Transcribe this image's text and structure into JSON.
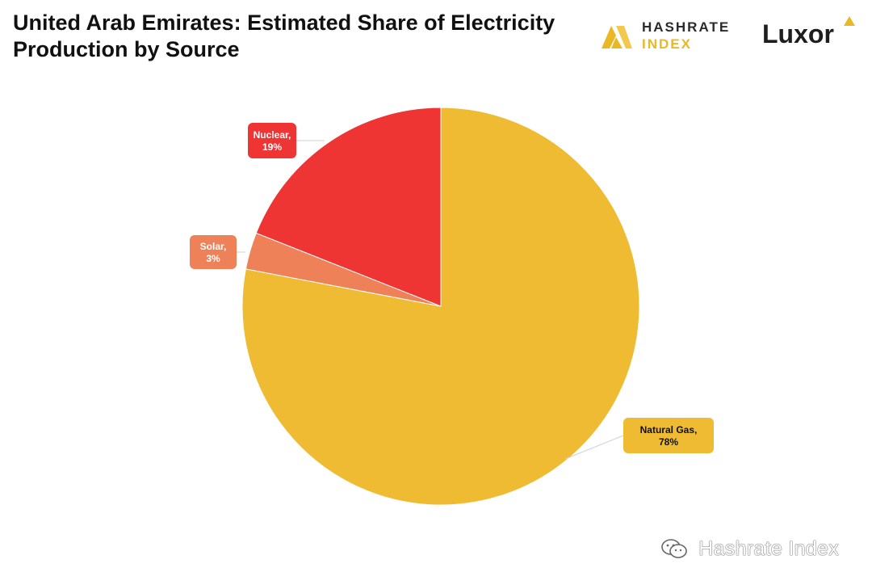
{
  "title": {
    "line1": "United Arab Emirates: Estimated Share of Electricity",
    "line2": "Production by Source"
  },
  "brands": {
    "hashrate_line1": "HASHRATE",
    "hashrate_line2": "INDEX",
    "luxor": "Luxor"
  },
  "watermark": "Hashrate Index",
  "colors": {
    "natural_gas": "#efbb33",
    "nuclear": "#ef3434",
    "solar": "#ee8157",
    "brand_yellow": "#e9b824"
  },
  "chart_data": {
    "type": "pie",
    "title": "United Arab Emirates: Estimated Share of Electricity Production by Source",
    "slices": [
      {
        "label": "Natural Gas",
        "value": 78,
        "display": "78%",
        "color": "#efbb33",
        "label_color": "#111111"
      },
      {
        "label": "Solar",
        "value": 3,
        "display": "3%",
        "color": "#ee8157",
        "label_color": "#ffffff"
      },
      {
        "label": "Nuclear",
        "value": 19,
        "display": "19%",
        "color": "#ef3434",
        "label_color": "#ffffff"
      }
    ],
    "start_angle_deg": 0,
    "direction": "clockwise",
    "legend": "none"
  }
}
